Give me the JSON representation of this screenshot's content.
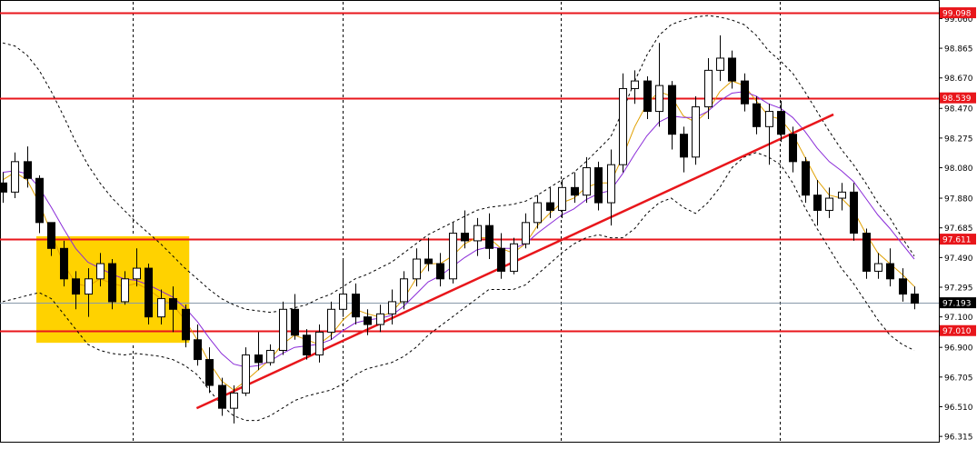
{
  "chart_data": {
    "type": "candlestick",
    "yaxis": {
      "range": [
        96.28,
        99.17
      ],
      "ticks": [
        "99.060",
        "98.865",
        "98.670",
        "98.470",
        "98.275",
        "98.080",
        "97.880",
        "97.685",
        "97.490",
        "97.295",
        "97.100",
        "96.900",
        "96.705",
        "96.510",
        "96.315"
      ]
    },
    "grid": {
      "vertical_dashed_lines": 5
    },
    "horizontal_levels": [
      {
        "label": "99.098",
        "value": 99.098
      },
      {
        "label": "98.539",
        "value": 98.539
      },
      {
        "label": "97.611",
        "value": 97.611
      },
      {
        "label": "97.010",
        "value": 97.01
      }
    ],
    "current_price": {
      "label": "97.193",
      "value": 97.193
    },
    "highlight_zone": {
      "x_bars": [
        0,
        14
      ],
      "y": [
        96.93,
        97.63
      ],
      "color": "#FFD200"
    },
    "trendlines": [
      {
        "from": {
          "bar": 1,
          "value": 96.5
        },
        "to": {
          "bar": 35,
          "value": 98.43
        },
        "color": "#E8161B"
      }
    ],
    "candles": [
      [
        97.98,
        98.05,
        97.85,
        97.92
      ],
      [
        97.92,
        98.18,
        97.88,
        98.12
      ],
      [
        98.12,
        98.22,
        97.95,
        98.01
      ],
      [
        98.01,
        98.03,
        97.65,
        97.72
      ],
      [
        97.72,
        97.72,
        97.5,
        97.55
      ],
      [
        97.55,
        97.6,
        97.3,
        97.35
      ],
      [
        97.35,
        97.4,
        97.15,
        97.25
      ],
      [
        97.25,
        97.42,
        97.1,
        97.35
      ],
      [
        97.35,
        97.52,
        97.3,
        97.45
      ],
      [
        97.45,
        97.48,
        97.15,
        97.2
      ],
      [
        97.2,
        97.4,
        97.18,
        97.35
      ],
      [
        97.35,
        97.55,
        97.3,
        97.42
      ],
      [
        97.42,
        97.45,
        97.05,
        97.1
      ],
      [
        97.1,
        97.28,
        97.05,
        97.22
      ],
      [
        97.22,
        97.3,
        97.0,
        97.15
      ],
      [
        97.15,
        97.18,
        96.9,
        96.95
      ],
      [
        96.95,
        97.05,
        96.78,
        96.82
      ],
      [
        96.82,
        96.9,
        96.6,
        96.65
      ],
      [
        96.65,
        96.7,
        96.45,
        96.5
      ],
      [
        96.5,
        96.65,
        96.4,
        96.6
      ],
      [
        96.6,
        96.9,
        96.58,
        96.85
      ],
      [
        96.85,
        97.0,
        96.75,
        96.8
      ],
      [
        96.8,
        96.92,
        96.78,
        96.88
      ],
      [
        96.88,
        97.2,
        96.85,
        97.15
      ],
      [
        97.15,
        97.25,
        96.95,
        96.98
      ],
      [
        96.98,
        97.02,
        96.82,
        96.85
      ],
      [
        96.85,
        97.05,
        96.8,
        97.0
      ],
      [
        97.0,
        97.2,
        96.95,
        97.15
      ],
      [
        97.15,
        97.48,
        97.1,
        97.25
      ],
      [
        97.25,
        97.32,
        97.05,
        97.1
      ],
      [
        97.1,
        97.15,
        96.98,
        97.05
      ],
      [
        97.05,
        97.18,
        97.0,
        97.12
      ],
      [
        97.12,
        97.28,
        97.05,
        97.2
      ],
      [
        97.2,
        97.4,
        97.15,
        97.35
      ],
      [
        97.35,
        97.55,
        97.3,
        97.48
      ],
      [
        97.48,
        97.62,
        97.4,
        97.45
      ],
      [
        97.45,
        97.52,
        97.3,
        97.35
      ],
      [
        97.35,
        97.72,
        97.32,
        97.65
      ],
      [
        97.65,
        97.8,
        97.55,
        97.6
      ],
      [
        97.6,
        97.75,
        97.5,
        97.7
      ],
      [
        97.7,
        97.78,
        97.48,
        97.55
      ],
      [
        97.55,
        97.65,
        97.35,
        97.4
      ],
      [
        97.4,
        97.62,
        97.38,
        97.58
      ],
      [
        97.58,
        97.78,
        97.55,
        97.72
      ],
      [
        97.72,
        97.9,
        97.68,
        97.85
      ],
      [
        97.85,
        97.95,
        97.75,
        97.8
      ],
      [
        97.8,
        98.0,
        97.75,
        97.95
      ],
      [
        97.95,
        98.05,
        97.85,
        97.9
      ],
      [
        97.9,
        98.15,
        97.85,
        98.08
      ],
      [
        98.08,
        98.12,
        97.8,
        97.85
      ],
      [
        97.85,
        98.2,
        97.7,
        98.1
      ],
      [
        98.1,
        98.7,
        98.05,
        98.6
      ],
      [
        98.6,
        98.72,
        98.5,
        98.65
      ],
      [
        98.65,
        98.68,
        98.4,
        98.45
      ],
      [
        98.45,
        98.9,
        98.35,
        98.62
      ],
      [
        98.62,
        98.65,
        98.2,
        98.3
      ],
      [
        98.3,
        98.35,
        98.05,
        98.15
      ],
      [
        98.15,
        98.55,
        98.1,
        98.48
      ],
      [
        98.48,
        98.8,
        98.4,
        98.72
      ],
      [
        98.72,
        98.95,
        98.65,
        98.8
      ],
      [
        98.8,
        98.85,
        98.6,
        98.65
      ],
      [
        98.65,
        98.7,
        98.45,
        98.5
      ],
      [
        98.5,
        98.55,
        98.3,
        98.35
      ],
      [
        98.35,
        98.5,
        98.1,
        98.45
      ],
      [
        98.45,
        98.52,
        98.25,
        98.3
      ],
      [
        98.3,
        98.35,
        98.05,
        98.12
      ],
      [
        98.12,
        98.15,
        97.85,
        97.9
      ],
      [
        97.9,
        98.0,
        97.7,
        97.8
      ],
      [
        97.8,
        97.95,
        97.75,
        97.88
      ],
      [
        97.88,
        97.98,
        97.8,
        97.92
      ],
      [
        97.92,
        97.98,
        97.6,
        97.65
      ],
      [
        97.65,
        97.68,
        97.35,
        97.4
      ],
      [
        97.4,
        97.52,
        97.35,
        97.45
      ],
      [
        97.45,
        97.55,
        97.3,
        97.35
      ],
      [
        97.35,
        97.42,
        97.2,
        97.25
      ],
      [
        97.25,
        97.3,
        97.15,
        97.19
      ]
    ],
    "overlays": [
      {
        "name": "",
        "color": "#E0A000",
        "style": "solid",
        "values": [
          98.0,
          98.05,
          98.0,
          97.85,
          97.65,
          97.45,
          97.32,
          97.3,
          97.35,
          97.32,
          97.3,
          97.32,
          97.28,
          97.22,
          97.18,
          97.08,
          96.95,
          96.8,
          96.68,
          96.62,
          96.68,
          96.75,
          96.82,
          96.92,
          96.98,
          96.95,
          96.92,
          96.98,
          97.08,
          97.15,
          97.12,
          97.1,
          97.13,
          97.22,
          97.35,
          97.45,
          97.45,
          97.5,
          97.58,
          97.62,
          97.62,
          97.55,
          97.52,
          97.58,
          97.7,
          97.78,
          97.85,
          97.88,
          97.95,
          97.98,
          97.98,
          98.15,
          98.35,
          98.5,
          98.58,
          98.55,
          98.42,
          98.38,
          98.45,
          98.58,
          98.65,
          98.62,
          98.52,
          98.42,
          98.4,
          98.3,
          98.15,
          98.0,
          97.9,
          97.88,
          97.8,
          97.65,
          97.52,
          97.45,
          97.38,
          97.3
        ]
      },
      {
        "name": "",
        "color": "#8A2BD8",
        "style": "solid",
        "values": [
          98.05,
          98.06,
          98.04,
          97.95,
          97.82,
          97.68,
          97.55,
          97.46,
          97.42,
          97.38,
          97.35,
          97.34,
          97.31,
          97.27,
          97.23,
          97.16,
          97.07,
          96.96,
          96.86,
          96.79,
          96.77,
          96.78,
          96.81,
          96.86,
          96.9,
          96.91,
          96.92,
          96.95,
          97.01,
          97.06,
          97.08,
          97.09,
          97.11,
          97.17,
          97.25,
          97.33,
          97.37,
          97.43,
          97.49,
          97.54,
          97.56,
          97.55,
          97.55,
          97.58,
          97.65,
          97.71,
          97.77,
          97.81,
          97.87,
          97.91,
          97.93,
          98.04,
          98.17,
          98.29,
          98.38,
          98.42,
          98.41,
          98.41,
          98.45,
          98.52,
          98.57,
          98.58,
          98.55,
          98.5,
          98.47,
          98.41,
          98.32,
          98.21,
          98.12,
          98.06,
          97.99,
          97.88,
          97.77,
          97.68,
          97.58,
          97.48
        ]
      },
      {
        "name": "",
        "color": "#000000",
        "style": "dashed",
        "values": [
          98.9,
          98.88,
          98.82,
          98.72,
          98.58,
          98.42,
          98.25,
          98.1,
          97.98,
          97.88,
          97.8,
          97.72,
          97.65,
          97.58,
          97.5,
          97.42,
          97.35,
          97.28,
          97.22,
          97.18,
          97.15,
          97.14,
          97.13,
          97.14,
          97.16,
          97.18,
          97.22,
          97.25,
          97.3,
          97.35,
          97.38,
          97.42,
          97.46,
          97.52,
          97.58,
          97.64,
          97.68,
          97.72,
          97.76,
          97.8,
          97.82,
          97.83,
          97.84,
          97.86,
          97.9,
          97.95,
          98.0,
          98.05,
          98.12,
          98.2,
          98.28,
          98.45,
          98.65,
          98.82,
          98.95,
          99.02,
          99.05,
          99.07,
          99.08,
          99.07,
          99.05,
          99.02,
          98.95,
          98.85,
          98.78,
          98.7,
          98.58,
          98.45,
          98.32,
          98.2,
          98.1,
          97.98,
          97.85,
          97.75,
          97.62,
          97.5
        ]
      },
      {
        "name": "",
        "color": "#000000",
        "style": "dashed",
        "values": [
          97.2,
          97.22,
          97.24,
          97.26,
          97.22,
          97.12,
          97.02,
          96.92,
          96.88,
          96.86,
          96.85,
          96.86,
          96.85,
          96.84,
          96.82,
          96.78,
          96.72,
          96.62,
          96.52,
          96.45,
          96.42,
          96.42,
          96.45,
          96.5,
          96.55,
          96.58,
          96.6,
          96.62,
          96.66,
          96.72,
          96.76,
          96.78,
          96.8,
          96.84,
          96.9,
          96.98,
          97.04,
          97.1,
          97.16,
          97.22,
          97.28,
          97.28,
          97.28,
          97.31,
          97.38,
          97.45,
          97.52,
          97.58,
          97.62,
          97.64,
          97.62,
          97.62,
          97.68,
          97.78,
          97.85,
          97.88,
          97.82,
          97.78,
          97.85,
          97.95,
          98.08,
          98.15,
          98.18,
          98.15,
          98.1,
          97.98,
          97.82,
          97.68,
          97.55,
          97.42,
          97.32,
          97.2,
          97.08,
          96.98,
          96.92,
          96.88
        ]
      }
    ]
  }
}
